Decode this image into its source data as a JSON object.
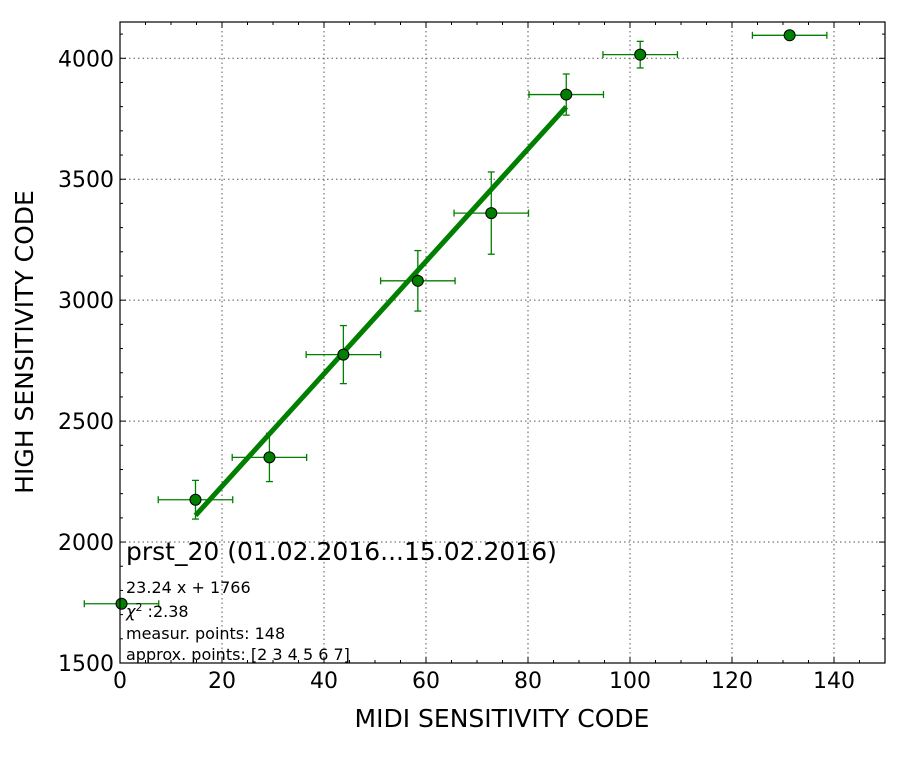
{
  "chart_data": {
    "type": "scatter",
    "xlabel": "MIDI SENSITIVITY CODE",
    "ylabel": "HIGH SENSITIVITY CODE",
    "xlim": [
      0,
      150
    ],
    "ylim": [
      1500,
      4150
    ],
    "xticks": [
      0,
      20,
      40,
      60,
      80,
      100,
      120,
      140
    ],
    "yticks": [
      1500,
      2000,
      2500,
      3000,
      3500,
      4000
    ],
    "grid": true,
    "color": "#007f00",
    "points": [
      {
        "x": 0.3,
        "y": 1745,
        "xerr": 7.3,
        "yerr": 0
      },
      {
        "x": 14.8,
        "y": 2175,
        "xerr": 7.3,
        "yerr": 80
      },
      {
        "x": 29.3,
        "y": 2350,
        "xerr": 7.3,
        "yerr": 100
      },
      {
        "x": 43.8,
        "y": 2775,
        "xerr": 7.3,
        "yerr": 120
      },
      {
        "x": 58.4,
        "y": 3080,
        "xerr": 7.3,
        "yerr": 125
      },
      {
        "x": 72.8,
        "y": 3360,
        "xerr": 7.3,
        "yerr": 170
      },
      {
        "x": 87.5,
        "y": 3850,
        "xerr": 7.3,
        "yerr": 85
      },
      {
        "x": 102.0,
        "y": 4015,
        "xerr": 7.3,
        "yerr": 55
      },
      {
        "x": 131.3,
        "y": 4095,
        "xerr": 7.3,
        "yerr": 0
      }
    ],
    "fit": {
      "slope": 23.24,
      "intercept": 1766,
      "x_range": [
        14.8,
        87.5
      ]
    },
    "annotations": {
      "title": "prst_20 (01.02.2016...15.02.2016)",
      "equation": "23.24 x + 1766",
      "chi2_symbol": "χ",
      "chi2_superscript": "2",
      "chi2_value": " :2.38",
      "measur_points": "measur. points: 148",
      "approx_points": "approx. points: [2 3 4 5 6 7]"
    }
  }
}
